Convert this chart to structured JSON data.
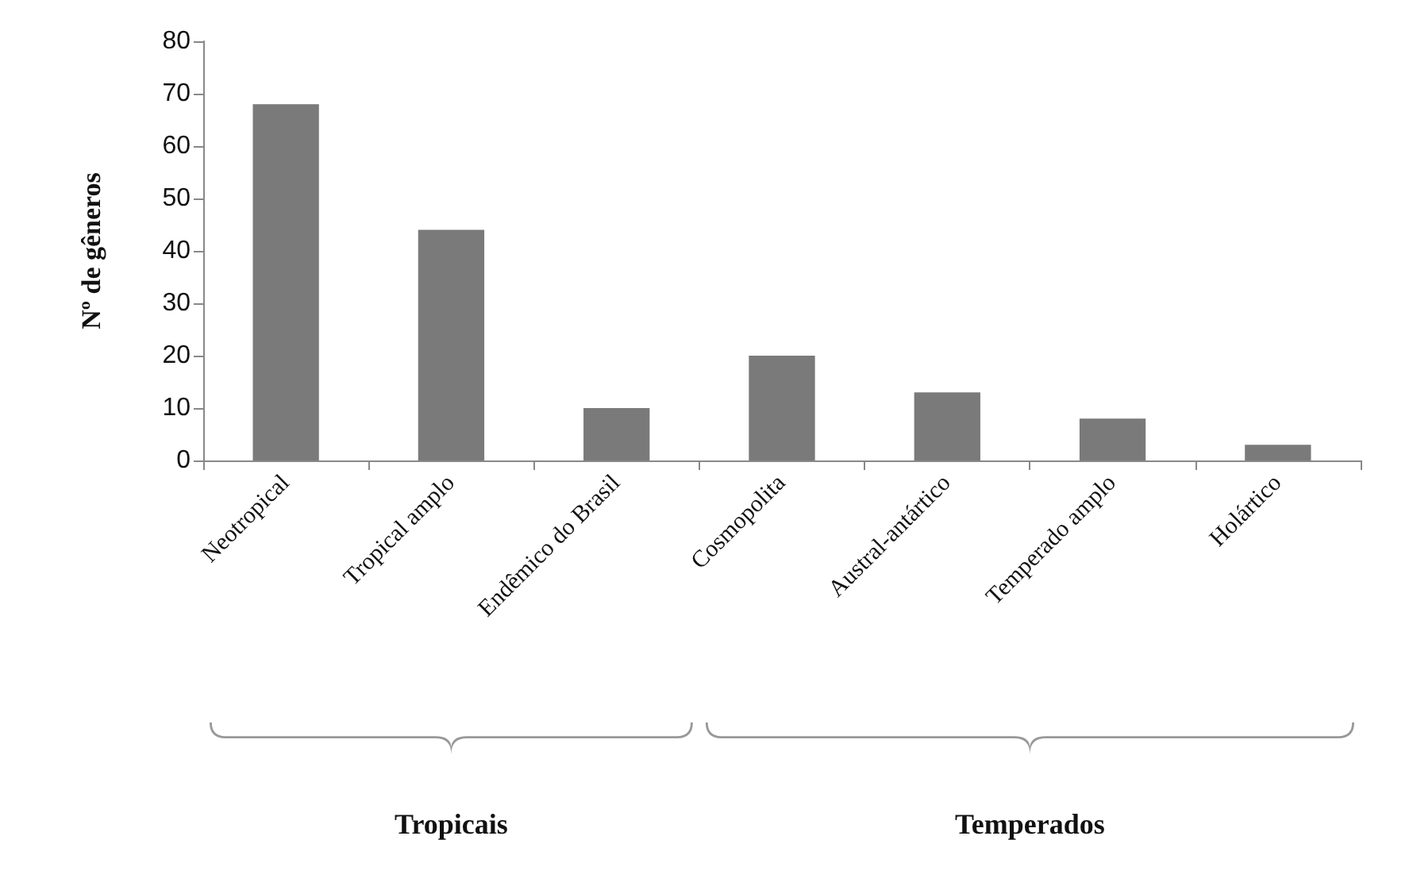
{
  "chart_data": {
    "type": "bar",
    "ylabel": "Nº de gêneros",
    "categories": [
      "Neotropical",
      "Tropical amplo",
      "Endêmico do Brasil",
      "Cosmopolita",
      "Austral-antártico",
      "Temperado amplo",
      "Holártico"
    ],
    "values": [
      68,
      44,
      10,
      20,
      13,
      8,
      3
    ],
    "color": "#7a7a7a",
    "ylim": [
      0,
      80
    ],
    "yticks": [
      0,
      10,
      20,
      30,
      40,
      50,
      60,
      70,
      80
    ],
    "grid": false,
    "annotations": [
      "Tropicais",
      "Temperados"
    ]
  }
}
